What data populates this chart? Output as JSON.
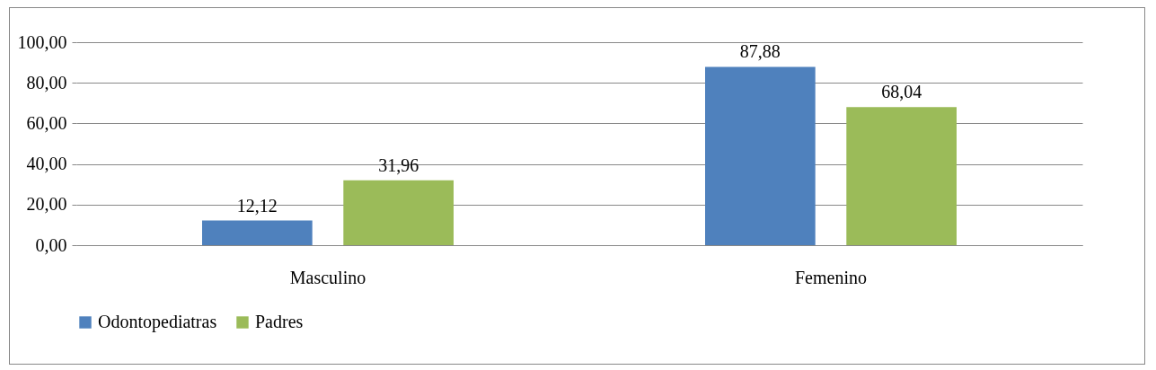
{
  "chart_data": {
    "type": "bar",
    "categories": [
      "Masculino",
      "Femenino"
    ],
    "series": [
      {
        "name": "Odontopediatras",
        "color": "#4f81bd",
        "values": [
          12.12,
          87.88
        ],
        "value_labels": [
          "12,12",
          "87,88"
        ]
      },
      {
        "name": "Padres",
        "color": "#9bbb59",
        "values": [
          31.96,
          68.04
        ],
        "value_labels": [
          "31,96",
          "68,04"
        ]
      }
    ],
    "ylim": [
      0,
      100
    ],
    "yticks": [
      {
        "value": 0,
        "label": "0,00"
      },
      {
        "value": 20,
        "label": "20,00"
      },
      {
        "value": 40,
        "label": "40,00"
      },
      {
        "value": 60,
        "label": "60,00"
      },
      {
        "value": 80,
        "label": "80,00"
      },
      {
        "value": 100,
        "label": "100,00"
      }
    ],
    "grid": "y",
    "legend": "bottom"
  }
}
